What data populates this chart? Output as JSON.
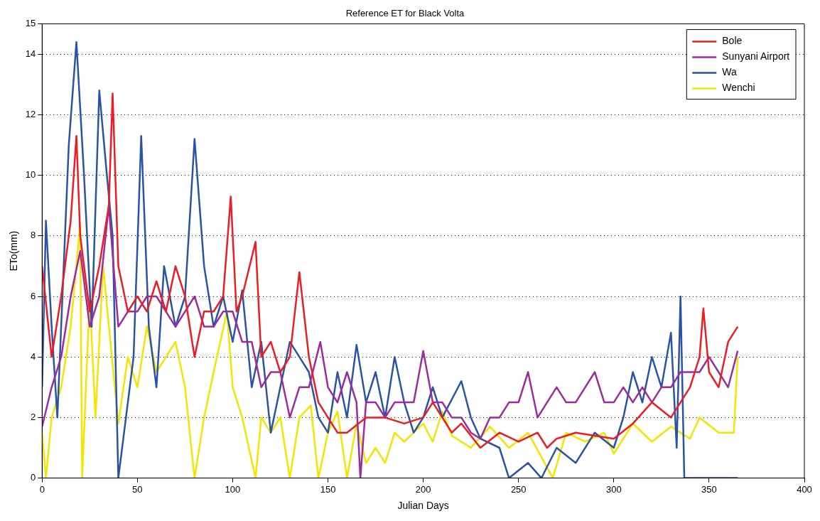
{
  "chart_data": {
    "type": "line",
    "title": "Reference ET for Black Volta",
    "xlabel": "Julian Days",
    "ylabel": "ETo(mm)",
    "xlim": [
      0,
      400
    ],
    "xticks": [
      0,
      50,
      100,
      150,
      200,
      250,
      300,
      350,
      400
    ],
    "ylim": [
      0,
      15
    ],
    "yticks": [
      0,
      2,
      4,
      6,
      8,
      10,
      12,
      14,
      15
    ],
    "grid": "y",
    "legend": "top right",
    "marker": "none",
    "series": [
      {
        "name": "Bole",
        "color": "#ed1c24",
        "x": [
          0,
          5,
          10,
          15,
          18,
          20,
          25,
          30,
          35,
          37,
          40,
          45,
          50,
          55,
          60,
          65,
          70,
          75,
          80,
          85,
          90,
          95,
          99,
          102,
          105,
          112,
          115,
          120,
          125,
          130,
          135,
          140,
          145,
          150,
          155,
          160,
          170,
          180,
          190,
          200,
          205,
          210,
          215,
          220,
          230,
          240,
          250,
          260,
          265,
          270,
          280,
          290,
          300,
          310,
          320,
          330,
          340,
          345,
          347,
          350,
          355,
          360,
          365
        ],
        "values": [
          7,
          4,
          6,
          8.5,
          11.3,
          8,
          5.5,
          7,
          9,
          12.7,
          7,
          5.5,
          6,
          5.5,
          6.5,
          5.5,
          7,
          6,
          4,
          5.5,
          5.5,
          6,
          9.3,
          5.5,
          6,
          7.8,
          4,
          4.5,
          3.5,
          4,
          6.8,
          4,
          2.5,
          2,
          1.5,
          1.5,
          2,
          2,
          1.8,
          2,
          2.5,
          2,
          1.5,
          1.8,
          1,
          1.5,
          1.2,
          1.5,
          1,
          1.3,
          1.5,
          1.4,
          1.3,
          1.8,
          2.5,
          2,
          3,
          4,
          5.6,
          3.5,
          3,
          4.5,
          5
        ]
      },
      {
        "name": "Sunyani Airport",
        "color": "#9e2b9e",
        "x": [
          0,
          5,
          10,
          15,
          20,
          25,
          30,
          35,
          40,
          45,
          50,
          55,
          60,
          65,
          70,
          75,
          80,
          85,
          90,
          95,
          100,
          105,
          110,
          115,
          120,
          125,
          130,
          135,
          140,
          146,
          150,
          155,
          160,
          165,
          167,
          170,
          175,
          180,
          185,
          190,
          195,
          200,
          205,
          210,
          215,
          220,
          225,
          230,
          235,
          240,
          245,
          250,
          255,
          260,
          265,
          270,
          275,
          280,
          285,
          290,
          295,
          300,
          305,
          310,
          315,
          320,
          325,
          330,
          335,
          340,
          345,
          350,
          355,
          360,
          365
        ],
        "values": [
          1.7,
          3,
          4,
          6,
          7.5,
          5,
          6,
          9,
          5,
          5.5,
          5.5,
          6,
          6,
          5.5,
          5,
          5.5,
          6,
          5,
          5,
          5.5,
          5.5,
          4.5,
          4.5,
          3,
          3.5,
          3.5,
          2,
          3,
          3,
          4.5,
          3,
          2.5,
          3.5,
          2.5,
          0,
          2.5,
          2.5,
          2,
          2.5,
          2.5,
          2.5,
          4.2,
          2.5,
          2.5,
          2,
          2,
          1.5,
          1.3,
          2,
          2,
          2.5,
          2.5,
          3.5,
          2,
          2.5,
          3,
          2.5,
          2.5,
          3,
          3.5,
          2.5,
          2.5,
          3,
          2.5,
          3,
          2.5,
          3,
          3,
          3.5,
          3.5,
          3.5,
          4,
          3.5,
          3,
          4.2
        ]
      },
      {
        "name": "Wa",
        "color": "#2a52a6",
        "x": [
          0,
          2,
          5,
          8,
          12,
          14,
          18,
          22,
          26,
          30,
          34,
          37,
          40,
          44,
          48,
          52,
          56,
          60,
          64,
          70,
          75,
          80,
          85,
          90,
          95,
          100,
          105,
          110,
          115,
          120,
          125,
          130,
          135,
          140,
          145,
          150,
          155,
          160,
          165,
          170,
          175,
          180,
          185,
          190,
          195,
          200,
          205,
          210,
          220,
          225,
          230,
          240,
          245,
          255,
          262,
          270,
          280,
          290,
          300,
          305,
          310,
          315,
          320,
          325,
          330,
          333,
          335,
          337,
          340,
          350,
          365
        ],
        "values": [
          3,
          8.5,
          5,
          2,
          8,
          11,
          14.4,
          10,
          5,
          12.8,
          10,
          8,
          0,
          2,
          4,
          11.3,
          5,
          3,
          7,
          5,
          6,
          11.2,
          7,
          5,
          6,
          4.5,
          6.2,
          3,
          4.5,
          1.5,
          3,
          4.5,
          4,
          3.5,
          2,
          1.5,
          3.5,
          2,
          4.4,
          2.5,
          3.5,
          2,
          4,
          2.5,
          1.5,
          2,
          3,
          2,
          3.2,
          2,
          1.3,
          1,
          0,
          0.5,
          0,
          1,
          0.5,
          1.5,
          1,
          2,
          3.5,
          2.5,
          4,
          3,
          4.8,
          1,
          6,
          0,
          0,
          0,
          0
        ]
      },
      {
        "name": "Wenchi",
        "color": "#f2e600",
        "x": [
          0,
          2,
          5,
          10,
          15,
          20,
          21,
          25,
          28,
          32,
          40,
          45,
          50,
          55,
          60,
          70,
          75,
          80,
          85,
          90,
          97,
          100,
          105,
          112,
          115,
          120,
          125,
          130,
          135,
          141,
          145,
          150,
          155,
          160,
          165,
          170,
          175,
          180,
          185,
          190,
          195,
          200,
          205,
          210,
          215,
          225,
          235,
          245,
          255,
          268,
          275,
          285,
          295,
          300,
          310,
          320,
          330,
          340,
          345,
          355,
          363,
          365
        ],
        "values": [
          1.5,
          0,
          2,
          3,
          5,
          8.4,
          0,
          6,
          2,
          7,
          1.8,
          4,
          3,
          5,
          3.5,
          4.5,
          3,
          0,
          2,
          3.5,
          5.5,
          3,
          2,
          0,
          2,
          1.5,
          2,
          0,
          2,
          2.4,
          0,
          1.5,
          2.2,
          0,
          1.8,
          0.5,
          1,
          0.5,
          1.5,
          1.2,
          1.5,
          1.8,
          1.2,
          2.2,
          1.4,
          1,
          1.7,
          1,
          1.5,
          0,
          1.5,
          1.2,
          1.5,
          0.8,
          1.8,
          1.2,
          1.7,
          1.3,
          2,
          1.5,
          1.5,
          4
        ]
      }
    ]
  }
}
